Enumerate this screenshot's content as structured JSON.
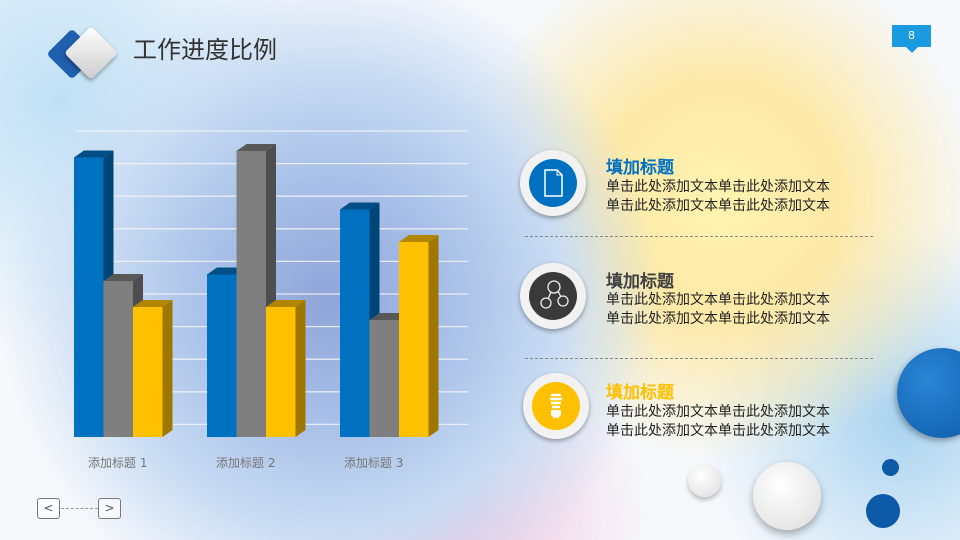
{
  "title": "工作进度比例",
  "page_number": "8",
  "colors": {
    "blue": "#0070c0",
    "gray": "#7f7f7f",
    "yellow": "#ffc000",
    "accent": "#1a9be0"
  },
  "chart_data": {
    "type": "bar",
    "style": "3d-clustered-column",
    "categories": [
      "添加标题 1",
      "添加标题 2",
      "添加标题 3"
    ],
    "series": [
      {
        "color": "#0070c0",
        "values": [
          4.3,
          2.5,
          3.5
        ]
      },
      {
        "color": "#7f7f7f",
        "values": [
          2.4,
          4.4,
          1.8
        ]
      },
      {
        "color": "#ffc000",
        "values": [
          2,
          2,
          3
        ]
      }
    ],
    "ylim": [
      0,
      5
    ],
    "grid": true,
    "legend": "none"
  },
  "items": [
    {
      "icon": "document-icon",
      "title": "填加标题",
      "title_color": "#0070c0",
      "lines": [
        "单击此处添加文本单击此处添加文本",
        "单击此处添加文本单击此处添加文本"
      ]
    },
    {
      "icon": "share-nodes-icon",
      "title": "填加标题",
      "title_color": "#404040",
      "lines": [
        "单击此处添加文本单击此处添加文本",
        "单击此处添加文本单击此处添加文本"
      ]
    },
    {
      "icon": "lightbulb-icon",
      "title": "填加标题",
      "title_color": "#ffc000",
      "lines": [
        "单击此处添加文本单击此处添加文本",
        "单击此处添加文本单击此处添加文本"
      ]
    }
  ],
  "nav": {
    "prev": "<",
    "next": ">"
  }
}
